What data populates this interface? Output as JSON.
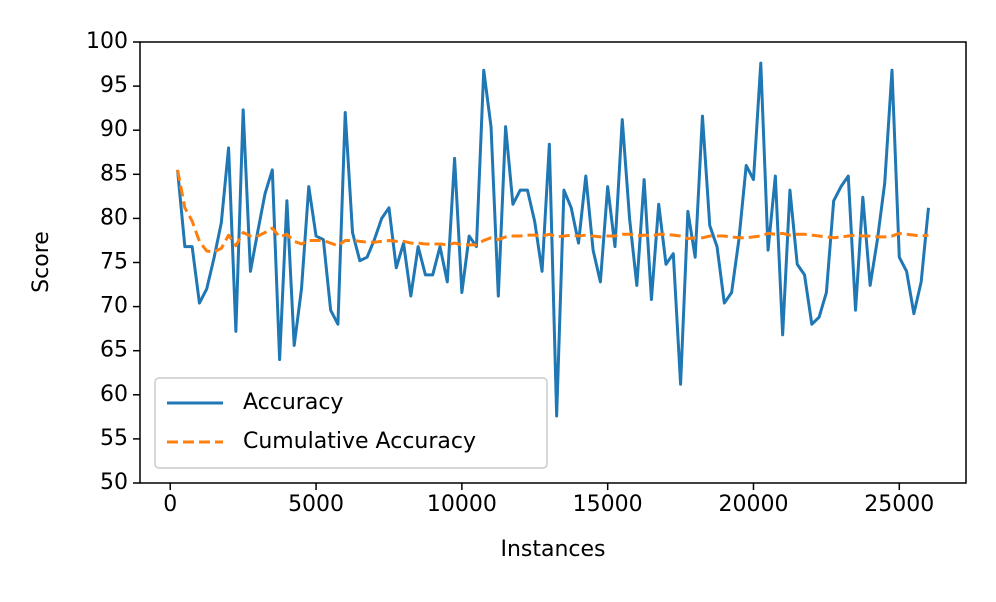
{
  "chart_data": {
    "type": "line",
    "x_label": "Instances",
    "y_label": "Score",
    "x": [
      250,
      500,
      750,
      1000,
      1250,
      1500,
      1750,
      2000,
      2250,
      2500,
      2750,
      3000,
      3250,
      3500,
      3750,
      4000,
      4250,
      4500,
      4750,
      5000,
      5250,
      5500,
      5750,
      6000,
      6250,
      6500,
      6750,
      7000,
      7250,
      7500,
      7750,
      8000,
      8250,
      8500,
      8750,
      9000,
      9250,
      9500,
      9750,
      10000,
      10250,
      10500,
      10750,
      11000,
      11250,
      11500,
      11750,
      12000,
      12250,
      12500,
      12750,
      13000,
      13250,
      13500,
      13750,
      14000,
      14250,
      14500,
      14750,
      15000,
      15250,
      15500,
      15750,
      16000,
      16250,
      16500,
      16750,
      17000,
      17250,
      17500,
      17750,
      18000,
      18250,
      18500,
      18750,
      19000,
      19250,
      19500,
      19750,
      20000,
      20250,
      20500,
      20750,
      21000,
      21250,
      21500,
      21750,
      22000,
      22250,
      22500,
      22750,
      23000,
      23250,
      23500,
      23750,
      24000,
      24250,
      24500,
      24750,
      25000,
      25250,
      25500,
      25750,
      26000
    ],
    "series": [
      {
        "name": "Accuracy",
        "color": "#1f77b4",
        "dash": false,
        "values": [
          85.5,
          76.8,
          76.8,
          70.4,
          72,
          75.5,
          79.5,
          88,
          67.2,
          92.3,
          74,
          78.5,
          82.8,
          85.5,
          64,
          82,
          65.6,
          72,
          83.6,
          78,
          77.6,
          69.6,
          68,
          92,
          78.4,
          75.2,
          75.6,
          77.6,
          80,
          81.2,
          74.4,
          77.2,
          71.2,
          76.8,
          73.6,
          73.6,
          76.8,
          72.8,
          86.8,
          71.6,
          78,
          76.8,
          96.8,
          90.4,
          71.2,
          90.4,
          81.6,
          83.2,
          83.2,
          79.6,
          74,
          88.4,
          57.6,
          83.2,
          81.2,
          77.2,
          84.8,
          76.4,
          72.8,
          83.6,
          76.8,
          91.2,
          80,
          72.4,
          84.4,
          70.8,
          81.6,
          74.8,
          76,
          61.2,
          80.8,
          75.6,
          91.6,
          79.2,
          76.8,
          70.4,
          71.6,
          77.6,
          86,
          84.4,
          97.6,
          76.4,
          84.8,
          66.8,
          83.2,
          74.8,
          73.6,
          68,
          68.8,
          71.6,
          82,
          83.6,
          84.8,
          69.6,
          82.4,
          72.4,
          77.6,
          84,
          96.8,
          75.6,
          74,
          69.2,
          72.8,
          81.2
        ]
      },
      {
        "name": "Cumulative Accuracy",
        "color": "#ff7f0e",
        "dash": true,
        "values": [
          85.5,
          81.2,
          79.7,
          77.4,
          76.3,
          76.2,
          76.6,
          78.1,
          76.9,
          78.4,
          78.0,
          78.0,
          78.4,
          78.9,
          77.9,
          78.2,
          77.4,
          77.1,
          77.5,
          77.5,
          77.5,
          77.2,
          76.9,
          77.5,
          77.5,
          77.4,
          77.3,
          77.3,
          77.4,
          77.5,
          77.4,
          77.4,
          77.2,
          77.2,
          77.1,
          77.1,
          77.1,
          77.0,
          77.2,
          77.0,
          77.0,
          77.0,
          77.5,
          77.8,
          77.6,
          77.9,
          78.0,
          78.0,
          78.1,
          78.1,
          78.0,
          78.2,
          77.9,
          78.0,
          78.1,
          78.0,
          78.1,
          78.0,
          77.9,
          78.0,
          78.0,
          78.2,
          78.2,
          78.0,
          78.1,
          78.0,
          78.2,
          78.2,
          78.1,
          78.0,
          77.7,
          77.8,
          77.8,
          78.0,
          78.0,
          78.0,
          77.9,
          77.8,
          77.8,
          77.9,
          78.0,
          78.3,
          78.2,
          78.3,
          78.1,
          78.2,
          78.2,
          78.1,
          78.0,
          77.9,
          77.8,
          77.9,
          78.0,
          78.1,
          78.0,
          78.0,
          77.9,
          77.9,
          78.0,
          78.3,
          78.2,
          78.1,
          78.0,
          78.1
        ]
      }
    ],
    "xlim": [
      -1037.5,
      27287.5
    ],
    "xticks": [
      0,
      5000,
      10000,
      15000,
      20000,
      25000
    ],
    "ylim": [
      50,
      100
    ],
    "yticks": [
      50,
      55,
      60,
      65,
      70,
      75,
      80,
      85,
      90,
      95,
      100
    ],
    "legend": "lower left",
    "grid": false
  }
}
